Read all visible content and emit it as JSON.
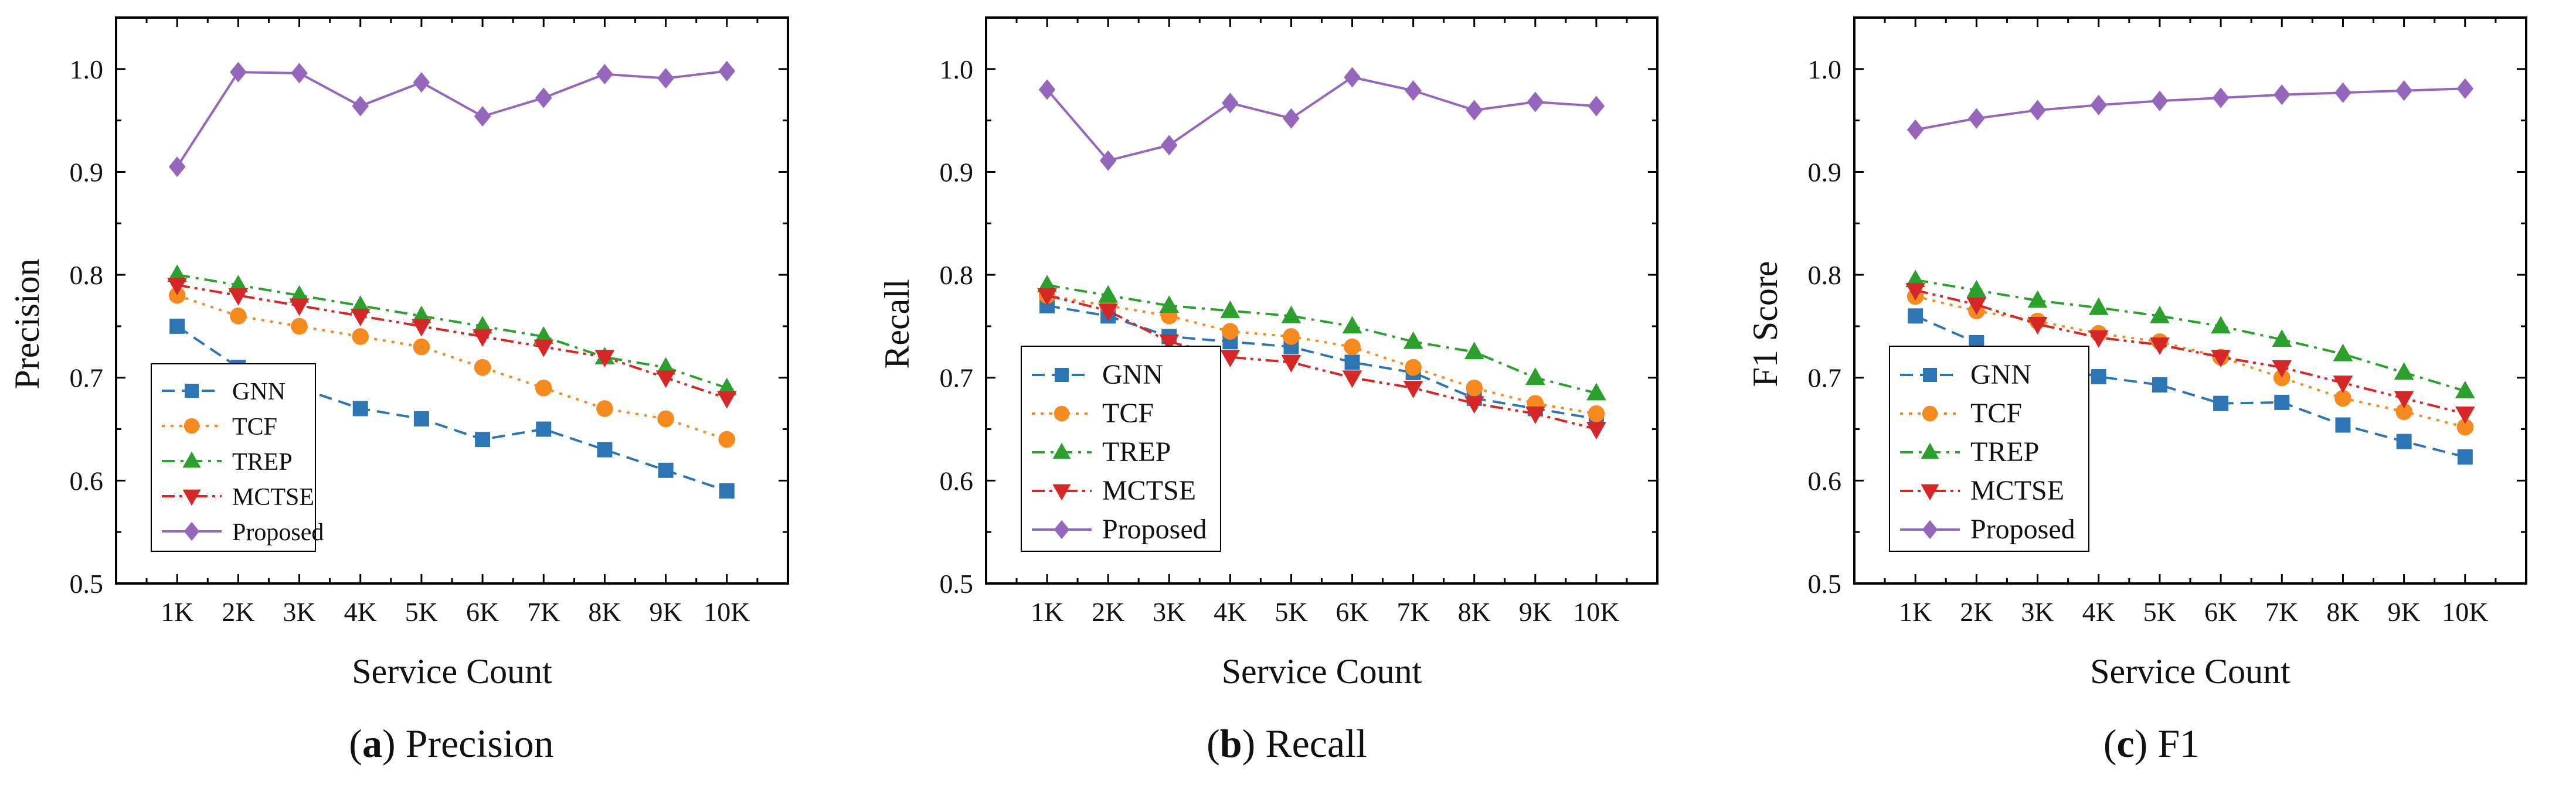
{
  "chart_data": [
    {
      "type": "line",
      "id": "precision",
      "caption": {
        "letter": "a",
        "title": "Precision"
      },
      "xlabel": "Service Count",
      "ylabel": "Precision",
      "categories": [
        "1K",
        "2K",
        "3K",
        "4K",
        "5K",
        "6K",
        "7K",
        "8K",
        "9K",
        "10K"
      ],
      "ylim": [
        0.5,
        1.05
      ],
      "yticks": [
        0.5,
        0.6,
        0.7,
        0.8,
        0.9,
        1.0
      ],
      "ytick_labels": [
        "0.5",
        "0.6",
        "0.7",
        "0.8",
        "0.9",
        "1.0"
      ],
      "legend_position": "bottom-left",
      "series": [
        {
          "name": "GNN",
          "color": "#2E75B6",
          "marker": "square",
          "dash": "dash",
          "values": [
            0.75,
            0.71,
            0.69,
            0.67,
            0.66,
            0.64,
            0.65,
            0.63,
            0.61,
            0.59
          ]
        },
        {
          "name": "TCF",
          "color": "#F58A1F",
          "marker": "circle",
          "dash": "dot",
          "values": [
            0.78,
            0.76,
            0.75,
            0.74,
            0.73,
            0.71,
            0.69,
            0.67,
            0.66,
            0.64
          ]
        },
        {
          "name": "TREP",
          "color": "#2CA02C",
          "marker": "triangle-up",
          "dash": "dashdot",
          "values": [
            0.8,
            0.79,
            0.78,
            0.77,
            0.76,
            0.75,
            0.74,
            0.72,
            0.71,
            0.69
          ]
        },
        {
          "name": "MCTSE",
          "color": "#D62728",
          "marker": "triangle-down",
          "dash": "dashdotdot",
          "values": [
            0.79,
            0.78,
            0.77,
            0.76,
            0.75,
            0.74,
            0.73,
            0.72,
            0.7,
            0.68
          ]
        },
        {
          "name": "Proposed",
          "color": "#9467BD",
          "marker": "diamond",
          "dash": "solid",
          "values": [
            0.905,
            0.997,
            0.996,
            0.964,
            0.987,
            0.954,
            0.972,
            0.995,
            0.991,
            0.998
          ]
        }
      ]
    },
    {
      "type": "line",
      "id": "recall",
      "caption": {
        "letter": "b",
        "title": "Recall"
      },
      "xlabel": "Service Count",
      "ylabel": "Recall",
      "categories": [
        "1K",
        "2K",
        "3K",
        "4K",
        "5K",
        "6K",
        "7K",
        "8K",
        "9K",
        "10K"
      ],
      "ylim": [
        0.5,
        1.05
      ],
      "yticks": [
        0.5,
        0.6,
        0.7,
        0.8,
        0.9,
        1.0
      ],
      "ytick_labels": [
        "0.5",
        "0.6",
        "0.7",
        "0.8",
        "0.9",
        "1.0"
      ],
      "legend_position": "bottom-left",
      "series": [
        {
          "name": "GNN",
          "color": "#2E75B6",
          "marker": "square",
          "dash": "dash",
          "values": [
            0.77,
            0.76,
            0.74,
            0.735,
            0.73,
            0.715,
            0.705,
            0.68,
            0.67,
            0.66
          ]
        },
        {
          "name": "TCF",
          "color": "#F58A1F",
          "marker": "circle",
          "dash": "dot",
          "values": [
            0.78,
            0.77,
            0.76,
            0.745,
            0.74,
            0.73,
            0.71,
            0.69,
            0.675,
            0.665
          ]
        },
        {
          "name": "TREP",
          "color": "#2CA02C",
          "marker": "triangle-up",
          "dash": "dashdot",
          "values": [
            0.79,
            0.78,
            0.77,
            0.765,
            0.76,
            0.75,
            0.735,
            0.725,
            0.7,
            0.685
          ]
        },
        {
          "name": "MCTSE",
          "color": "#D62728",
          "marker": "triangle-down",
          "dash": "dashdotdot",
          "values": [
            0.78,
            0.765,
            0.735,
            0.72,
            0.715,
            0.7,
            0.69,
            0.675,
            0.665,
            0.65
          ]
        },
        {
          "name": "Proposed",
          "color": "#9467BD",
          "marker": "diamond",
          "dash": "solid",
          "values": [
            0.98,
            0.911,
            0.926,
            0.967,
            0.952,
            0.992,
            0.979,
            0.96,
            0.968,
            0.964
          ]
        }
      ]
    },
    {
      "type": "line",
      "id": "f1",
      "caption": {
        "letter": "c",
        "title": "F1"
      },
      "xlabel": "Service Count",
      "ylabel": "F1 Score",
      "categories": [
        "1K",
        "2K",
        "3K",
        "4K",
        "5K",
        "6K",
        "7K",
        "8K",
        "9K",
        "10K"
      ],
      "ylim": [
        0.5,
        1.05
      ],
      "yticks": [
        0.5,
        0.6,
        0.7,
        0.8,
        0.9,
        1.0
      ],
      "ytick_labels": [
        "0.5",
        "0.6",
        "0.7",
        "0.8",
        "0.9",
        "1.0"
      ],
      "legend_position": "bottom-left",
      "series": [
        {
          "name": "GNN",
          "color": "#2E75B6",
          "marker": "square",
          "dash": "dash",
          "values": [
            0.76,
            0.734,
            0.714,
            0.701,
            0.693,
            0.675,
            0.676,
            0.654,
            0.638,
            0.623
          ]
        },
        {
          "name": "TCF",
          "color": "#F58A1F",
          "marker": "circle",
          "dash": "dot",
          "values": [
            0.779,
            0.765,
            0.755,
            0.743,
            0.735,
            0.72,
            0.7,
            0.68,
            0.667,
            0.652
          ]
        },
        {
          "name": "TREP",
          "color": "#2CA02C",
          "marker": "triangle-up",
          "dash": "dashdot",
          "values": [
            0.795,
            0.785,
            0.775,
            0.768,
            0.76,
            0.75,
            0.737,
            0.723,
            0.705,
            0.687
          ]
        },
        {
          "name": "MCTSE",
          "color": "#D62728",
          "marker": "triangle-down",
          "dash": "dashdotdot",
          "values": [
            0.785,
            0.771,
            0.752,
            0.739,
            0.732,
            0.72,
            0.71,
            0.695,
            0.68,
            0.665
          ]
        },
        {
          "name": "Proposed",
          "color": "#9467BD",
          "marker": "diamond",
          "dash": "solid",
          "values": [
            0.941,
            0.952,
            0.96,
            0.965,
            0.969,
            0.972,
            0.975,
            0.977,
            0.979,
            0.981
          ]
        }
      ]
    }
  ]
}
